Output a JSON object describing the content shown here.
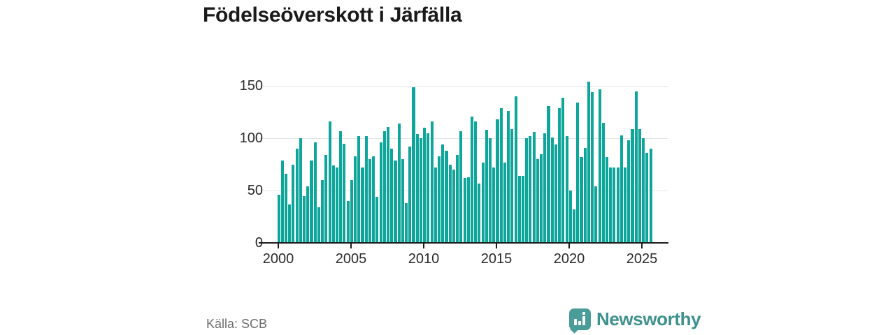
{
  "title": "Födelseöverskott i Järfälla",
  "source": "Källa: SCB",
  "brand": {
    "name": "Newsworthy",
    "icon": "bar-chart-speech-bubble"
  },
  "colors": {
    "bar": "#0ea59a",
    "brand_teal": "#4a9c98",
    "brand_text": "#3e918d",
    "axis": "#1c1c1c",
    "gridline": "#e4e4e4",
    "text": "#2a2a2a",
    "muted_text": "#6e6e6e"
  },
  "chart_data": {
    "type": "bar",
    "title": "Födelseöverskott i Järfälla",
    "frequency": "quarterly",
    "start_period": "2000 Q1",
    "end_period": "2025 Q3",
    "x_tick_labels": [
      "2000",
      "2005",
      "2010",
      "2015",
      "2020",
      "2025"
    ],
    "y_ticks": [
      0,
      50,
      100,
      150
    ],
    "ylim": [
      0,
      160
    ],
    "grid": "horizontal",
    "legend": "none",
    "source": "Källa: SCB",
    "values": [
      46,
      79,
      66,
      37,
      75,
      90,
      100,
      45,
      54,
      79,
      96,
      34,
      60,
      84,
      116,
      74,
      72,
      107,
      95,
      40,
      60,
      83,
      102,
      72,
      102,
      80,
      83,
      44,
      96,
      107,
      111,
      90,
      79,
      114,
      80,
      38,
      92,
      149,
      104,
      100,
      110,
      105,
      116,
      72,
      83,
      94,
      88,
      75,
      70,
      84,
      107,
      62,
      63,
      121,
      116,
      57,
      77,
      108,
      100,
      72,
      118,
      129,
      77,
      126,
      109,
      140,
      64,
      64,
      100,
      102,
      106,
      80,
      85,
      105,
      131,
      101,
      94,
      129,
      139,
      102,
      50,
      32,
      134,
      82,
      91,
      154,
      144,
      54,
      147,
      115,
      82,
      72,
      72,
      72,
      103,
      72,
      98,
      109,
      145,
      109,
      100,
      86,
      90
    ]
  }
}
